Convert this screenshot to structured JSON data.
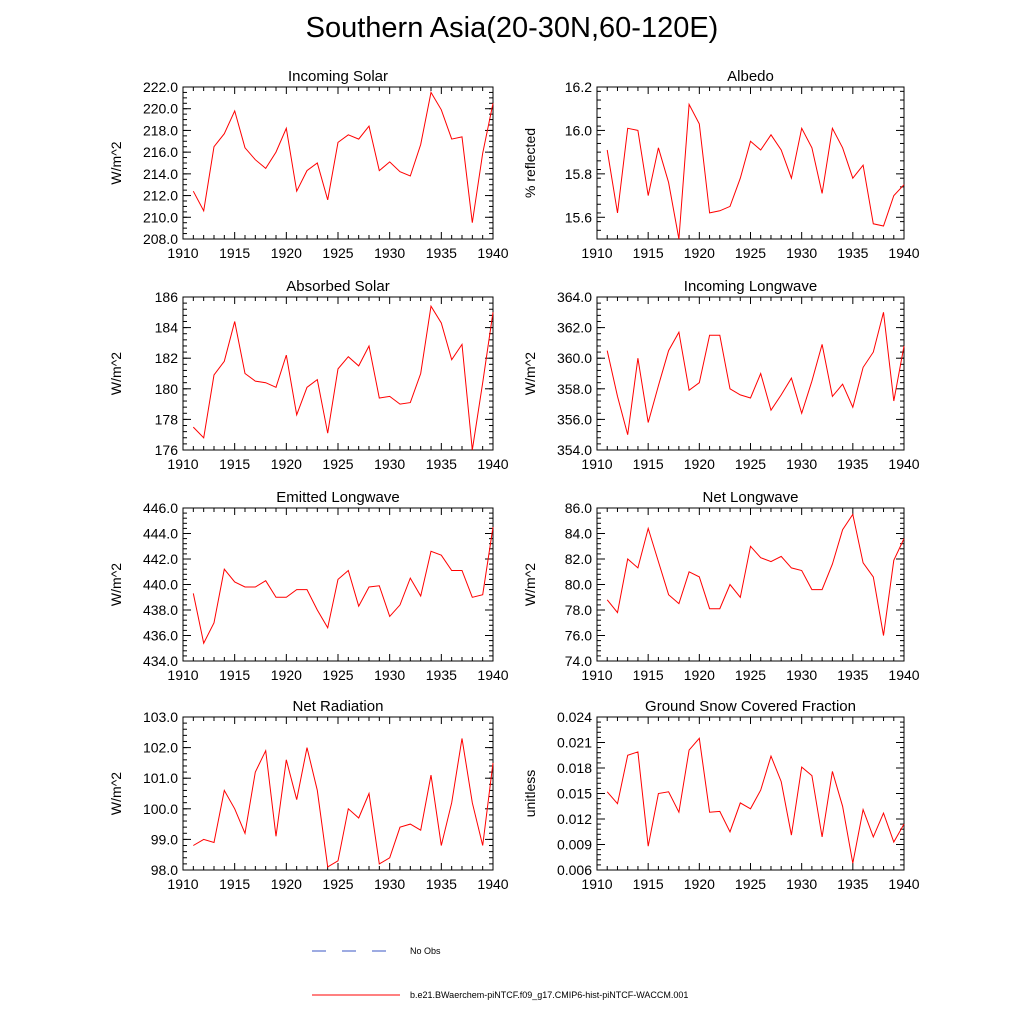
{
  "page_title": "Southern Asia(20-30N,60-120E)",
  "legend": {
    "items": [
      {
        "label": "No Obs",
        "color": "#3b57c4",
        "style": "dashed"
      },
      {
        "label": "b.e21.BWaerchem-piNTCF.f09_g17.CMIP6-hist-piNTCF-WACCM.001",
        "color": "#ff0000",
        "style": "solid"
      }
    ]
  },
  "colors": {
    "series": "#ff0000",
    "axis": "#000000"
  },
  "chart_data": [
    {
      "type": "line",
      "title": "Incoming Solar",
      "ylabel": "W/m^2",
      "xlim": [
        1910,
        1940
      ],
      "xticks": [
        1910,
        1915,
        1920,
        1925,
        1930,
        1935,
        1940
      ],
      "ylim": [
        208.0,
        222.0
      ],
      "yticks": [
        "208.0",
        "210.0",
        "212.0",
        "214.0",
        "216.0",
        "218.0",
        "220.0",
        "222.0"
      ],
      "minor_y": 0.5,
      "x": [
        1911,
        1912,
        1913,
        1914,
        1915,
        1916,
        1917,
        1918,
        1919,
        1920,
        1921,
        1922,
        1923,
        1924,
        1925,
        1926,
        1927,
        1928,
        1929,
        1930,
        1931,
        1932,
        1933,
        1934,
        1935,
        1936,
        1937,
        1938,
        1939,
        1940
      ],
      "values": [
        212.4,
        210.6,
        216.5,
        217.7,
        219.8,
        216.4,
        215.3,
        214.5,
        216.0,
        218.2,
        212.4,
        214.3,
        215.0,
        211.6,
        216.9,
        217.6,
        217.2,
        218.4,
        214.3,
        215.1,
        214.2,
        213.8,
        216.7,
        221.5,
        219.9,
        217.2,
        217.4,
        209.5,
        215.9,
        220.5
      ]
    },
    {
      "type": "line",
      "title": "Albedo",
      "ylabel": "% reflected",
      "xlim": [
        1910,
        1940
      ],
      "xticks": [
        1910,
        1915,
        1920,
        1925,
        1930,
        1935,
        1940
      ],
      "ylim": [
        15.5,
        16.2
      ],
      "yticks": [
        "15.6",
        "15.8",
        "16.0",
        "16.2"
      ],
      "minor_y": 0.04,
      "x": [
        1911,
        1912,
        1913,
        1914,
        1915,
        1916,
        1917,
        1918,
        1919,
        1920,
        1921,
        1922,
        1923,
        1924,
        1925,
        1926,
        1927,
        1928,
        1929,
        1930,
        1931,
        1932,
        1933,
        1934,
        1935,
        1936,
        1937,
        1938,
        1939,
        1940
      ],
      "values": [
        15.91,
        15.62,
        16.01,
        16.0,
        15.7,
        15.92,
        15.76,
        15.5,
        16.12,
        16.03,
        15.62,
        15.63,
        15.65,
        15.78,
        15.95,
        15.91,
        15.98,
        15.91,
        15.78,
        16.01,
        15.92,
        15.71,
        16.01,
        15.92,
        15.78,
        15.84,
        15.57,
        15.56,
        15.7,
        15.75
      ]
    },
    {
      "type": "line",
      "title": "Absorbed Solar",
      "ylabel": "W/m^2",
      "xlim": [
        1910,
        1940
      ],
      "xticks": [
        1910,
        1915,
        1920,
        1925,
        1930,
        1935,
        1940
      ],
      "ylim": [
        176,
        186
      ],
      "yticks": [
        "176",
        "178",
        "180",
        "182",
        "184",
        "186"
      ],
      "minor_y": 0.4,
      "x": [
        1911,
        1912,
        1913,
        1914,
        1915,
        1916,
        1917,
        1918,
        1919,
        1920,
        1921,
        1922,
        1923,
        1924,
        1925,
        1926,
        1927,
        1928,
        1929,
        1930,
        1931,
        1932,
        1933,
        1934,
        1935,
        1936,
        1937,
        1938,
        1939,
        1940
      ],
      "values": [
        177.5,
        176.8,
        180.9,
        181.8,
        184.4,
        181.0,
        180.5,
        180.4,
        180.1,
        182.2,
        178.3,
        180.1,
        180.6,
        177.1,
        181.3,
        182.1,
        181.5,
        182.8,
        179.4,
        179.5,
        179.0,
        179.1,
        181.0,
        185.4,
        184.3,
        181.9,
        182.9,
        176.0,
        180.4,
        185.0
      ]
    },
    {
      "type": "line",
      "title": "Incoming Longwave",
      "ylabel": "W/m^2",
      "xlim": [
        1910,
        1940
      ],
      "xticks": [
        1910,
        1915,
        1920,
        1925,
        1930,
        1935,
        1940
      ],
      "ylim": [
        354.0,
        364.0
      ],
      "yticks": [
        "354.0",
        "356.0",
        "358.0",
        "360.0",
        "362.0",
        "364.0"
      ],
      "minor_y": 0.4,
      "x": [
        1911,
        1912,
        1913,
        1914,
        1915,
        1916,
        1917,
        1918,
        1919,
        1920,
        1921,
        1922,
        1923,
        1924,
        1925,
        1926,
        1927,
        1928,
        1929,
        1930,
        1931,
        1932,
        1933,
        1934,
        1935,
        1936,
        1937,
        1938,
        1939,
        1940
      ],
      "values": [
        360.5,
        357.5,
        355.0,
        360.0,
        355.8,
        358.2,
        360.5,
        361.7,
        357.9,
        358.4,
        361.5,
        361.5,
        358.0,
        357.6,
        357.4,
        359.0,
        356.6,
        357.6,
        358.7,
        356.4,
        358.5,
        360.9,
        357.5,
        358.3,
        356.8,
        359.4,
        360.4,
        363.0,
        357.2,
        360.8
      ]
    },
    {
      "type": "line",
      "title": "Emitted Longwave",
      "ylabel": "W/m^2",
      "xlim": [
        1910,
        1940
      ],
      "xticks": [
        1910,
        1915,
        1920,
        1925,
        1930,
        1935,
        1940
      ],
      "ylim": [
        434.0,
        446.0
      ],
      "yticks": [
        "434.0",
        "436.0",
        "438.0",
        "440.0",
        "442.0",
        "444.0",
        "446.0"
      ],
      "minor_y": 0.4,
      "x": [
        1911,
        1912,
        1913,
        1914,
        1915,
        1916,
        1917,
        1918,
        1919,
        1920,
        1921,
        1922,
        1923,
        1924,
        1925,
        1926,
        1927,
        1928,
        1929,
        1930,
        1931,
        1932,
        1933,
        1934,
        1935,
        1936,
        1937,
        1938,
        1939,
        1940
      ],
      "values": [
        439.3,
        435.4,
        437.0,
        441.2,
        440.2,
        439.8,
        439.8,
        440.3,
        439.0,
        439.0,
        439.6,
        439.6,
        438.0,
        436.6,
        440.4,
        441.1,
        438.3,
        439.8,
        439.9,
        437.5,
        438.4,
        440.5,
        439.1,
        442.6,
        442.3,
        441.1,
        441.1,
        439.0,
        439.2,
        444.5
      ]
    },
    {
      "type": "line",
      "title": "Net Longwave",
      "ylabel": "W/m^2",
      "xlim": [
        1910,
        1940
      ],
      "xticks": [
        1910,
        1915,
        1920,
        1925,
        1930,
        1935,
        1940
      ],
      "ylim": [
        74.0,
        86.0
      ],
      "yticks": [
        "74.0",
        "76.0",
        "78.0",
        "80.0",
        "82.0",
        "84.0",
        "86.0"
      ],
      "minor_y": 0.4,
      "x": [
        1911,
        1912,
        1913,
        1914,
        1915,
        1916,
        1917,
        1918,
        1919,
        1920,
        1921,
        1922,
        1923,
        1924,
        1925,
        1926,
        1927,
        1928,
        1929,
        1930,
        1931,
        1932,
        1933,
        1934,
        1935,
        1936,
        1937,
        1938,
        1939,
        1940
      ],
      "values": [
        78.8,
        77.8,
        82.0,
        81.3,
        84.4,
        81.8,
        79.2,
        78.5,
        81.0,
        80.6,
        78.1,
        78.1,
        80.0,
        79.0,
        83.0,
        82.1,
        81.8,
        82.2,
        81.3,
        81.1,
        79.6,
        79.6,
        81.6,
        84.3,
        85.5,
        81.7,
        80.6,
        76.0,
        81.9,
        83.6
      ]
    },
    {
      "type": "line",
      "title": "Net Radiation",
      "ylabel": "W/m^2",
      "xlim": [
        1910,
        1940
      ],
      "xticks": [
        1910,
        1915,
        1920,
        1925,
        1930,
        1935,
        1940
      ],
      "ylim": [
        98.0,
        103.0
      ],
      "yticks": [
        "98.0",
        "99.0",
        "100.0",
        "101.0",
        "102.0",
        "103.0"
      ],
      "minor_y": 0.2,
      "x": [
        1911,
        1912,
        1913,
        1914,
        1915,
        1916,
        1917,
        1918,
        1919,
        1920,
        1921,
        1922,
        1923,
        1924,
        1925,
        1926,
        1927,
        1928,
        1929,
        1930,
        1931,
        1932,
        1933,
        1934,
        1935,
        1936,
        1937,
        1938,
        1939,
        1940
      ],
      "values": [
        98.8,
        99.0,
        98.9,
        100.6,
        100.0,
        99.2,
        101.2,
        101.9,
        99.1,
        101.6,
        100.3,
        102.0,
        100.6,
        98.1,
        98.3,
        100.0,
        99.7,
        100.5,
        98.2,
        98.4,
        99.4,
        99.5,
        99.3,
        101.1,
        98.8,
        100.2,
        102.3,
        100.2,
        98.8,
        101.5
      ]
    },
    {
      "type": "line",
      "title": "Ground Snow Covered Fraction",
      "ylabel": "unitless",
      "xlim": [
        1910,
        1940
      ],
      "xticks": [
        1910,
        1915,
        1920,
        1925,
        1930,
        1935,
        1940
      ],
      "ylim": [
        0.006,
        0.024
      ],
      "yticks": [
        "0.006",
        "0.009",
        "0.012",
        "0.015",
        "0.018",
        "0.021",
        "0.024"
      ],
      "minor_y": 0.0006,
      "x": [
        1911,
        1912,
        1913,
        1914,
        1915,
        1916,
        1917,
        1918,
        1919,
        1920,
        1921,
        1922,
        1923,
        1924,
        1925,
        1926,
        1927,
        1928,
        1929,
        1930,
        1931,
        1932,
        1933,
        1934,
        1935,
        1936,
        1937,
        1938,
        1939,
        1940
      ],
      "values": [
        0.0152,
        0.0138,
        0.0195,
        0.0199,
        0.0088,
        0.015,
        0.0152,
        0.0128,
        0.0201,
        0.0215,
        0.0128,
        0.0129,
        0.0105,
        0.0139,
        0.0132,
        0.0154,
        0.0194,
        0.0164,
        0.0101,
        0.0181,
        0.0171,
        0.0099,
        0.0176,
        0.0135,
        0.0068,
        0.0131,
        0.0099,
        0.0127,
        0.0093,
        0.0114
      ]
    }
  ]
}
